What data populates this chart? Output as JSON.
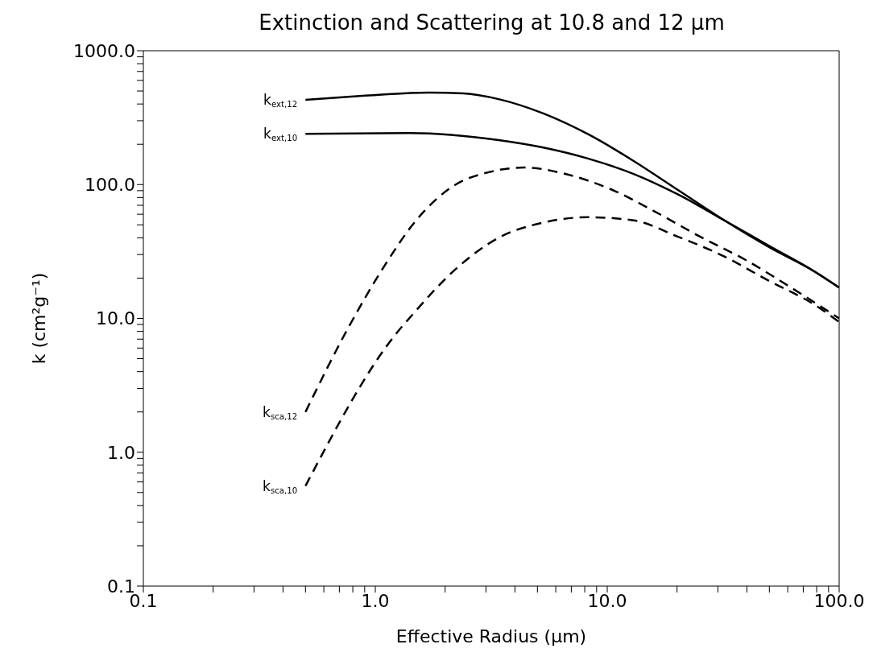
{
  "chart_data": {
    "type": "line",
    "title": "Extinction and Scattering at 10.8 and 12 μm",
    "xlabel": "Effective Radius (μm)",
    "ylabel": "k (cm²g⁻¹)",
    "log": "xy",
    "marker": "none",
    "xlim": [
      0.1,
      100
    ],
    "ylim": [
      0.1,
      1000
    ],
    "xticks": [
      {
        "value": 0.1,
        "label": "0.1"
      },
      {
        "value": 0.2,
        "label": null
      },
      {
        "value": 0.3,
        "label": null
      },
      {
        "value": 0.4,
        "label": null
      },
      {
        "value": 0.5,
        "label": null
      },
      {
        "value": 0.6,
        "label": null
      },
      {
        "value": 0.7,
        "label": null
      },
      {
        "value": 0.8,
        "label": null
      },
      {
        "value": 0.9,
        "label": null
      },
      {
        "value": 1,
        "label": "1.0"
      },
      {
        "value": 2,
        "label": null
      },
      {
        "value": 3,
        "label": null
      },
      {
        "value": 4,
        "label": null
      },
      {
        "value": 5,
        "label": null
      },
      {
        "value": 6,
        "label": null
      },
      {
        "value": 7,
        "label": null
      },
      {
        "value": 8,
        "label": null
      },
      {
        "value": 9,
        "label": null
      },
      {
        "value": 10,
        "label": "10.0"
      },
      {
        "value": 20,
        "label": null
      },
      {
        "value": 30,
        "label": null
      },
      {
        "value": 40,
        "label": null
      },
      {
        "value": 50,
        "label": null
      },
      {
        "value": 60,
        "label": null
      },
      {
        "value": 70,
        "label": null
      },
      {
        "value": 80,
        "label": null
      },
      {
        "value": 90,
        "label": null
      },
      {
        "value": 100,
        "label": "100.0"
      }
    ],
    "yticks": [
      {
        "value": 0.1,
        "label": "0.1"
      },
      {
        "value": 0.2,
        "label": null
      },
      {
        "value": 0.3,
        "label": null
      },
      {
        "value": 0.4,
        "label": null
      },
      {
        "value": 0.5,
        "label": null
      },
      {
        "value": 0.6,
        "label": null
      },
      {
        "value": 0.7,
        "label": null
      },
      {
        "value": 0.8,
        "label": null
      },
      {
        "value": 0.9,
        "label": null
      },
      {
        "value": 1,
        "label": "1.0"
      },
      {
        "value": 2,
        "label": null
      },
      {
        "value": 3,
        "label": null
      },
      {
        "value": 4,
        "label": null
      },
      {
        "value": 5,
        "label": null
      },
      {
        "value": 6,
        "label": null
      },
      {
        "value": 7,
        "label": null
      },
      {
        "value": 8,
        "label": null
      },
      {
        "value": 9,
        "label": null
      },
      {
        "value": 10,
        "label": "10.0"
      },
      {
        "value": 20,
        "label": null
      },
      {
        "value": 30,
        "label": null
      },
      {
        "value": 40,
        "label": null
      },
      {
        "value": 50,
        "label": null
      },
      {
        "value": 60,
        "label": null
      },
      {
        "value": 70,
        "label": null
      },
      {
        "value": 80,
        "label": null
      },
      {
        "value": 90,
        "label": null
      },
      {
        "value": 100,
        "label": "100.0"
      },
      {
        "value": 200,
        "label": null
      },
      {
        "value": 300,
        "label": null
      },
      {
        "value": 400,
        "label": null
      },
      {
        "value": 500,
        "label": null
      },
      {
        "value": 600,
        "label": null
      },
      {
        "value": 700,
        "label": null
      },
      {
        "value": 800,
        "label": null
      },
      {
        "value": 900,
        "label": null
      },
      {
        "value": 1000,
        "label": "1000.0"
      }
    ],
    "series": [
      {
        "name": "k$_{ext,12}$",
        "color": "#000000",
        "line_style": "solid",
        "x": [
          0.5,
          0.88,
          1.7,
          2.4,
          3.4,
          5.3,
          8.3,
          13,
          20,
          32,
          50,
          78,
          100
        ],
        "values": [
          430,
          460,
          487,
          480,
          435,
          340,
          237,
          150,
          92,
          54,
          34,
          22.5,
          17
        ]
      },
      {
        "name": "k$_{ext,10}$",
        "color": "#000000",
        "line_style": "solid",
        "x": [
          0.5,
          1.4,
          3.4,
          5.3,
          8.3,
          13,
          20,
          32,
          50,
          78,
          100
        ],
        "values": [
          239,
          243,
          215,
          189,
          156,
          120,
          85,
          54,
          34.7,
          22.5,
          17
        ]
      },
      {
        "name": "k$_{sca,12}$",
        "color": "#000000",
        "line_style": "dashed",
        "x": [
          0.5,
          0.77,
          1.1,
          1.5,
          2.2,
          3.1,
          4.4,
          6.6,
          10.4,
          16,
          25,
          40,
          62,
          100
        ],
        "values": [
          2,
          8.7,
          25,
          54,
          99,
          124,
          134,
          120,
          92,
          63,
          41,
          27,
          17,
          10
        ]
      },
      {
        "name": "k$_{sca,10}$",
        "color": "#000000",
        "line_style": "dashed",
        "x": [
          0.5,
          1.26,
          1.4,
          2.2,
          3.4,
          5.3,
          8.3,
          13,
          20,
          32,
          50,
          78,
          100
        ],
        "values": [
          0.56,
          8.1,
          10,
          23,
          40,
          52,
          57,
          54,
          41,
          29,
          19,
          12.7,
          9.4
        ]
      }
    ]
  }
}
